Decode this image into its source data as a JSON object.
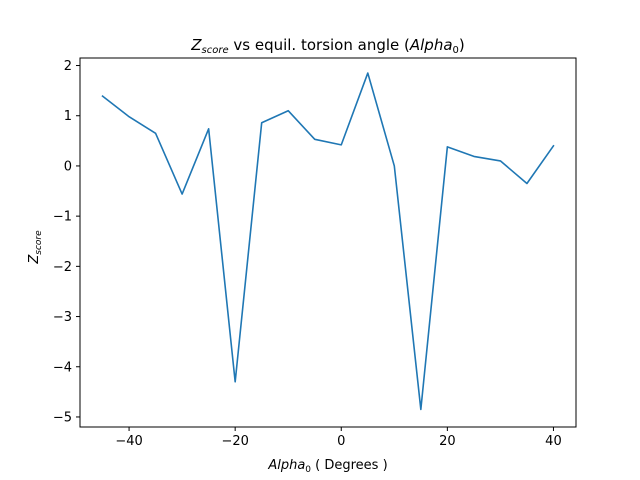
{
  "chart_data": {
    "type": "line",
    "title": {
      "main": "Z",
      "main_sub": "score",
      "middle": " vs equil. torsion angle (",
      "alpha": "Alpha",
      "alpha_sub": "0",
      "end": ")"
    },
    "xlabel": {
      "alpha": "Alpha",
      "alpha_sub": "0",
      "rest": " ( Degrees )"
    },
    "ylabel": {
      "main": "Z",
      "sub": "score"
    },
    "xlim": [
      -49.25,
      44.25
    ],
    "ylim": [
      -5.2,
      2.15
    ],
    "xticks": [
      -40,
      -20,
      0,
      20,
      40
    ],
    "xtick_labels": [
      "−40",
      "−20",
      "0",
      "20",
      "40"
    ],
    "yticks": [
      2,
      1,
      0,
      -1,
      -2,
      -3,
      -4,
      -5
    ],
    "ytick_labels": [
      "2",
      "1",
      "0",
      "−1",
      "−2",
      "−3",
      "−4",
      "−5"
    ],
    "grid": false,
    "series": [
      {
        "color": "#1f77b4",
        "x": [
          -45,
          -40,
          -35,
          -30,
          -25,
          -20,
          -15,
          -10,
          -5,
          0,
          5,
          10,
          15,
          20,
          25,
          30,
          35,
          40
        ],
        "y": [
          1.39,
          0.98,
          0.65,
          -0.56,
          0.74,
          -4.3,
          0.86,
          1.1,
          0.53,
          0.42,
          1.85,
          0.0,
          -4.85,
          0.38,
          0.19,
          0.1,
          -0.35,
          0.4
        ]
      }
    ]
  }
}
